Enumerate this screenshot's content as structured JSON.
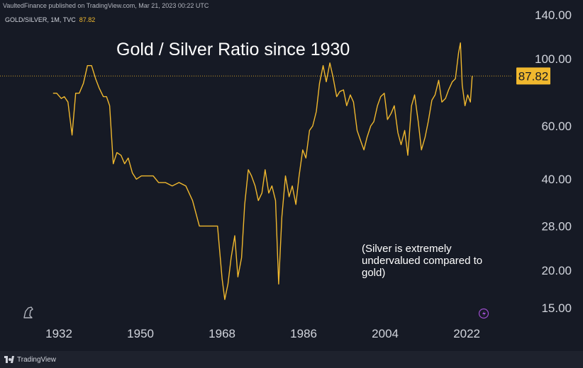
{
  "header": {
    "published_text": "VaultedFinance published on TradingView.com, Mar 21, 2023 00:22 UTC",
    "symbol": "GOLD/SILVER, 1M, TVC",
    "last_value": "87.82"
  },
  "footer": {
    "brand": "TradingView"
  },
  "icons": {
    "top_left": "dinosaur-logo-icon",
    "bottom_right": "flash-icon"
  },
  "colors": {
    "background": "#161a25",
    "line": "#f0b82e",
    "last_badge": "#f0b82e",
    "text": "#ffffff",
    "axis_text": "#d1d4dc"
  },
  "chart_data": {
    "type": "line",
    "title": "Gold / Silver Ratio since 1930",
    "annotation": "(Silver is extremely undervalued compared to gold)",
    "xlabel": "",
    "ylabel": "",
    "y_scale": "log",
    "x_ticks": [
      "1932",
      "1950",
      "1968",
      "1986",
      "2004",
      "2022"
    ],
    "y_ticks": [
      "140.00",
      "100.00",
      "60.00",
      "40.00",
      "28.00",
      "20.00",
      "15.00"
    ],
    "xlim": [
      1919,
      2032
    ],
    "ylim": [
      14,
      150
    ],
    "grid": false,
    "last_value": 87.82,
    "series": [
      {
        "x": [
          1930.7,
          1931.5,
          1932.5,
          1933.2,
          1934.0,
          1934.9,
          1935.7,
          1936.5,
          1937.4,
          1938.3,
          1939.2,
          1940.1,
          1940.9,
          1941.8,
          1942.5,
          1943.2,
          1944.0,
          1944.8,
          1945.7,
          1946.5,
          1947.3,
          1948.2,
          1949.1,
          1950.2,
          1951.5,
          1952.8,
          1954.0,
          1955.5,
          1957.0,
          1958.5,
          1960.0,
          1961.5,
          1963.0,
          1964.0,
          1965.0,
          1966.0,
          1967.0,
          1968.0,
          1968.6,
          1969.3,
          1970.0,
          1970.8,
          1971.5,
          1972.3,
          1973.0,
          1973.8,
          1974.5,
          1975.3,
          1976.0,
          1976.8,
          1977.5,
          1978.3,
          1979.0,
          1979.8,
          1980.5,
          1981.2,
          1982.0,
          1982.8,
          1983.5,
          1984.3,
          1985.0,
          1985.8,
          1986.5,
          1987.3,
          1988.0,
          1988.8,
          1989.5,
          1990.3,
          1991.0,
          1991.8,
          1992.5,
          1993.3,
          1994.0,
          1994.8,
          1995.5,
          1996.3,
          1997.0,
          1997.8,
          1998.5,
          1999.3,
          2000.0,
          2000.8,
          2001.5,
          2002.3,
          2003.0,
          2003.8,
          2004.5,
          2005.3,
          2006.0,
          2006.8,
          2007.5,
          2008.3,
          2009.0,
          2009.8,
          2010.5,
          2011.3,
          2012.0,
          2012.8,
          2013.5,
          2014.3,
          2015.0,
          2015.8,
          2016.5,
          2017.3,
          2018.0,
          2018.8,
          2019.5,
          2020.2,
          2020.6,
          2021.0,
          2021.6,
          2022.2,
          2022.8,
          2023.2
        ],
        "y": [
          77,
          77,
          74,
          75,
          72,
          56,
          77,
          77,
          83,
          95,
          95,
          86,
          80,
          75,
          75,
          70,
          45,
          49,
          48,
          45,
          47,
          42,
          40,
          41,
          41,
          41,
          39,
          39,
          38,
          39,
          38,
          34,
          28,
          28,
          28,
          28,
          28,
          18.8,
          16,
          18,
          22,
          26,
          19,
          22,
          33,
          43,
          41,
          38,
          34,
          36,
          43,
          36,
          38,
          34,
          18,
          30,
          41,
          35,
          38,
          33,
          41,
          50,
          47,
          58,
          60,
          67,
          83,
          95,
          84,
          97,
          87,
          75,
          78,
          79,
          70,
          76,
          72,
          58,
          54,
          50,
          55,
          60,
          62,
          70,
          75,
          77,
          63,
          66,
          70,
          57,
          52,
          58,
          48,
          70,
          76,
          62,
          50,
          55,
          62,
          73,
          76,
          85,
          72,
          74,
          79,
          84,
          86,
          105,
          113,
          82,
          70,
          76,
          72,
          87.82
        ]
      }
    ]
  }
}
